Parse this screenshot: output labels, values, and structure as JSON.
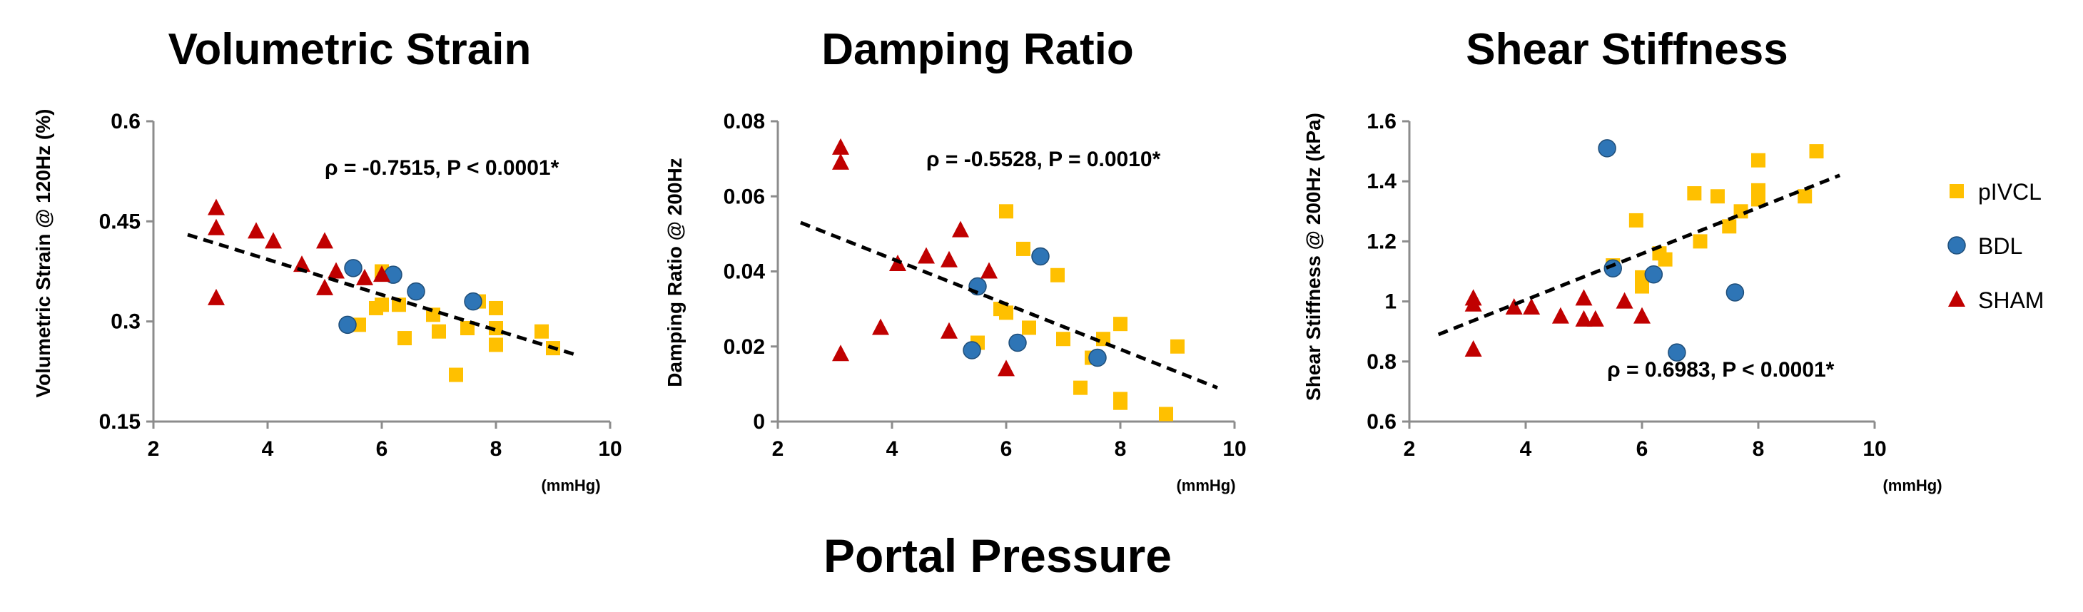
{
  "figure": {
    "xlabel": "Portal Pressure"
  },
  "legend": {
    "entries": [
      {
        "label": "pIVCL",
        "marker": "square",
        "color": "#FFC000"
      },
      {
        "label": "BDL",
        "marker": "circle",
        "color": "#2E75B6"
      },
      {
        "label": "SHAM",
        "marker": "triangle",
        "color": "#C00000"
      }
    ]
  },
  "chart_data": [
    {
      "type": "scatter",
      "title": "Volumetric Strain",
      "ylabel": "Volumetric Strain @ 120Hz (%)",
      "xunit": "(mmHg)",
      "xlim": [
        2,
        10
      ],
      "ylim": [
        0.15,
        0.6
      ],
      "xticks": [
        2,
        4,
        6,
        8,
        10
      ],
      "yticks": [
        0.15,
        0.3,
        0.45,
        0.6
      ],
      "ytick_labels": [
        "0.15",
        "0.3",
        "0.45",
        "0.6"
      ],
      "annotation": "ρ = -0.7515, P < 0.0001*",
      "annotation_anchor": {
        "x": 5.0,
        "y": 0.52
      },
      "trendline": {
        "x": [
          2.6,
          9.4
        ],
        "y": [
          0.43,
          0.25
        ]
      },
      "series": [
        {
          "name": "pIVCL",
          "points": [
            [
              5.6,
              0.295
            ],
            [
              5.9,
              0.32
            ],
            [
              6.0,
              0.375
            ],
            [
              6.0,
              0.325
            ],
            [
              6.3,
              0.325
            ],
            [
              6.4,
              0.275
            ],
            [
              6.9,
              0.31
            ],
            [
              7.0,
              0.285
            ],
            [
              7.3,
              0.22
            ],
            [
              7.5,
              0.29
            ],
            [
              7.7,
              0.33
            ],
            [
              8.0,
              0.32
            ],
            [
              8.0,
              0.29
            ],
            [
              8.0,
              0.265
            ],
            [
              8.8,
              0.285
            ],
            [
              9.0,
              0.26
            ]
          ]
        },
        {
          "name": "BDL",
          "points": [
            [
              5.4,
              0.295
            ],
            [
              5.5,
              0.38
            ],
            [
              6.2,
              0.37
            ],
            [
              6.6,
              0.345
            ],
            [
              7.6,
              0.33
            ]
          ]
        },
        {
          "name": "SHAM",
          "points": [
            [
              3.1,
              0.47
            ],
            [
              3.1,
              0.44
            ],
            [
              3.1,
              0.335
            ],
            [
              3.8,
              0.435
            ],
            [
              4.1,
              0.42
            ],
            [
              4.6,
              0.385
            ],
            [
              5.0,
              0.42
            ],
            [
              5.0,
              0.35
            ],
            [
              5.2,
              0.375
            ],
            [
              5.7,
              0.365
            ],
            [
              6.0,
              0.37
            ]
          ]
        }
      ]
    },
    {
      "type": "scatter",
      "title": "Damping Ratio",
      "ylabel": "Damping Ratio @ 200Hz",
      "xunit": "(mmHg)",
      "xlim": [
        2,
        10
      ],
      "ylim": [
        0,
        0.08
      ],
      "xticks": [
        2,
        4,
        6,
        8,
        10
      ],
      "yticks": [
        0,
        0.02,
        0.04,
        0.06,
        0.08
      ],
      "ytick_labels": [
        "0",
        "0.02",
        "0.04",
        "0.06",
        "0.08"
      ],
      "annotation": "ρ = -0.5528, P = 0.0010*",
      "annotation_anchor": {
        "x": 4.6,
        "y": 0.068
      },
      "trendline": {
        "x": [
          2.4,
          9.7
        ],
        "y": [
          0.053,
          0.009
        ]
      },
      "series": [
        {
          "name": "pIVCL",
          "points": [
            [
              5.5,
              0.021
            ],
            [
              5.9,
              0.03
            ],
            [
              6.0,
              0.056
            ],
            [
              6.0,
              0.029
            ],
            [
              6.3,
              0.046
            ],
            [
              6.4,
              0.025
            ],
            [
              6.9,
              0.039
            ],
            [
              7.0,
              0.022
            ],
            [
              7.3,
              0.009
            ],
            [
              7.5,
              0.017
            ],
            [
              7.7,
              0.022
            ],
            [
              8.0,
              0.026
            ],
            [
              8.0,
              0.006
            ],
            [
              8.0,
              0.005
            ],
            [
              8.8,
              0.002
            ],
            [
              9.0,
              0.02
            ]
          ]
        },
        {
          "name": "BDL",
          "points": [
            [
              5.4,
              0.019
            ],
            [
              5.5,
              0.036
            ],
            [
              6.2,
              0.021
            ],
            [
              6.6,
              0.044
            ],
            [
              7.6,
              0.017
            ]
          ]
        },
        {
          "name": "SHAM",
          "points": [
            [
              3.1,
              0.073
            ],
            [
              3.1,
              0.069
            ],
            [
              3.1,
              0.018
            ],
            [
              3.8,
              0.025
            ],
            [
              4.1,
              0.042
            ],
            [
              4.6,
              0.044
            ],
            [
              5.0,
              0.043
            ],
            [
              5.0,
              0.024
            ],
            [
              5.2,
              0.051
            ],
            [
              5.7,
              0.04
            ],
            [
              6.0,
              0.014
            ]
          ]
        }
      ]
    },
    {
      "type": "scatter",
      "title": "Shear Stiffness",
      "ylabel": "Shear Stiffness @ 200Hz (kPa)",
      "xunit": "(mmHg)",
      "xlim": [
        2,
        10
      ],
      "ylim": [
        0.6,
        1.6
      ],
      "xticks": [
        2,
        4,
        6,
        8,
        10
      ],
      "yticks": [
        0.6,
        0.8,
        1.0,
        1.2,
        1.4,
        1.6
      ],
      "ytick_labels": [
        "0.6",
        "0.8",
        "1",
        "1.2",
        "1.4",
        "1.6"
      ],
      "annotation": "ρ = 0.6983, P < 0.0001*",
      "annotation_anchor": {
        "x": 5.4,
        "y": 0.75
      },
      "trendline": {
        "x": [
          2.5,
          9.4
        ],
        "y": [
          0.89,
          1.42
        ]
      },
      "series": [
        {
          "name": "pIVCL",
          "points": [
            [
              5.5,
              1.12
            ],
            [
              5.9,
              1.27
            ],
            [
              6.0,
              1.08
            ],
            [
              6.0,
              1.05
            ],
            [
              6.3,
              1.16
            ],
            [
              6.4,
              1.14
            ],
            [
              6.9,
              1.36
            ],
            [
              7.0,
              1.2
            ],
            [
              7.3,
              1.35
            ],
            [
              7.5,
              1.25
            ],
            [
              7.7,
              1.3
            ],
            [
              8.0,
              1.47
            ],
            [
              8.0,
              1.37
            ],
            [
              8.0,
              1.34
            ],
            [
              8.8,
              1.35
            ],
            [
              9.0,
              1.5
            ]
          ]
        },
        {
          "name": "BDL",
          "points": [
            [
              5.4,
              1.51
            ],
            [
              5.5,
              1.11
            ],
            [
              6.2,
              1.09
            ],
            [
              6.6,
              0.83
            ],
            [
              7.6,
              1.03
            ]
          ]
        },
        {
          "name": "SHAM",
          "points": [
            [
              3.1,
              1.01
            ],
            [
              3.1,
              0.99
            ],
            [
              3.1,
              0.84
            ],
            [
              3.8,
              0.98
            ],
            [
              4.1,
              0.98
            ],
            [
              4.6,
              0.95
            ],
            [
              5.0,
              1.01
            ],
            [
              5.0,
              0.94
            ],
            [
              5.2,
              0.94
            ],
            [
              5.7,
              1.0
            ],
            [
              6.0,
              0.95
            ]
          ]
        }
      ]
    }
  ]
}
